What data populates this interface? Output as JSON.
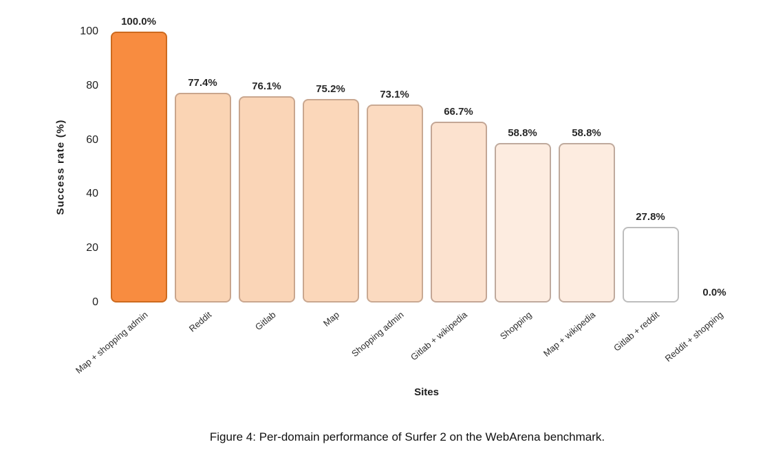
{
  "caption": "Figure 4: Per-domain performance of Surfer 2 on the WebArena benchmark.",
  "colors": {
    "background": "#ffffff",
    "accent": "#f88c40",
    "label_text": "#272727"
  },
  "chart_data": {
    "type": "bar",
    "title": "",
    "xlabel": "Sites",
    "ylabel": "Success rate (%)",
    "ylim": [
      0,
      100
    ],
    "yticks": [
      0,
      20,
      40,
      60,
      80,
      100
    ],
    "grid": false,
    "legend": "none",
    "categories": [
      "Map + shopping admin",
      "Reddit",
      "Gitlab",
      "Map",
      "Shopping admin",
      "Gitlab + wikipedia",
      "Shopping",
      "Map + wikipedia",
      "Gitlab + reddit",
      "Reddit + shopping"
    ],
    "values": [
      100.0,
      77.4,
      76.1,
      75.2,
      73.1,
      66.7,
      58.8,
      58.8,
      27.8,
      0.0
    ],
    "value_labels": [
      "100.0%",
      "77.4%",
      "76.1%",
      "75.2%",
      "73.1%",
      "66.7%",
      "58.8%",
      "58.8%",
      "27.8%",
      "0.0%"
    ],
    "bar_fills": [
      "#f88c40",
      "#fad4b4",
      "#fad5b7",
      "#fbd7ba",
      "#fbdac0",
      "#fce2cf",
      "#fdece0",
      "#fdece0",
      "#ffffff",
      "none"
    ],
    "bar_borders": [
      "#cd6a1e",
      "#c9a58c",
      "#c9a68e",
      "#c9a78f",
      "#c9a992",
      "#c3a695",
      "#bfaa9d",
      "#bfaa9d",
      "#bdbdbd",
      "none"
    ]
  }
}
